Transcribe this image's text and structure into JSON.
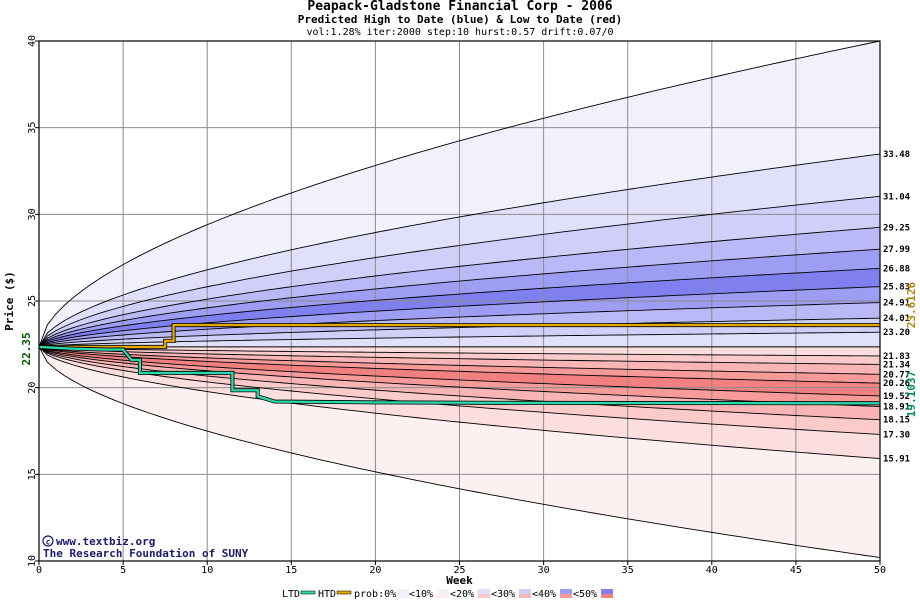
{
  "title": "Peapack-Gladstone Financial Corp - 2006",
  "subtitle": "Predicted High to Date (blue) &  Low to Date (red)",
  "params": "vol:1.28% iter:2000 step:10 hurst:0.57 drift:0.07/0",
  "watermark": {
    "line1": "www.textbiz.org",
    "line2": "The Research Foundation of SUNY"
  },
  "legend": {
    "ltd": "LTD",
    "htd": "HTD",
    "prob": "prob:0%",
    "items": [
      "<10%",
      "<20%",
      "<30%",
      "<40%",
      "<50%"
    ]
  },
  "colors": {
    "ltd": "#2bd6a8",
    "htd": "#e0a800",
    "blue_bands": [
      "#f1f1fd",
      "#e0e0fb",
      "#cfcff9",
      "#b9b9f7",
      "#9d9df4",
      "#7f7ff0"
    ],
    "red_bands": [
      "#fdf0f0",
      "#fcdede",
      "#fbcbcb",
      "#f9b5b5",
      "#f69a9a",
      "#f38080"
    ]
  },
  "chart_data": {
    "type": "area",
    "xlabel": "Week",
    "ylabel": "Price ($)",
    "xlim": [
      0,
      50
    ],
    "ylim": [
      10,
      40
    ],
    "xticks": [
      0,
      5,
      10,
      15,
      20,
      25,
      30,
      35,
      40,
      45,
      50
    ],
    "yticks": [
      10,
      15,
      20,
      25,
      30,
      35,
      40
    ],
    "start_price": 22.35,
    "start_label": "22.35",
    "htd_final_label": "23.6126",
    "ltd_final_label": "19.1037",
    "upper_bands": [
      {
        "label": "",
        "end": 40.0
      },
      {
        "label": "33.48",
        "end": 33.48
      },
      {
        "label": "31.04",
        "end": 31.04
      },
      {
        "label": "29.25",
        "end": 29.25
      },
      {
        "label": "27.99",
        "end": 27.99
      },
      {
        "label": "26.88",
        "end": 26.88
      },
      {
        "label": "25.83",
        "end": 25.83
      },
      {
        "label": "24.91",
        "end": 24.91
      },
      {
        "label": "24.01",
        "end": 24.01
      },
      {
        "label": "23.20",
        "end": 23.2
      }
    ],
    "lower_bands": [
      {
        "label": "21.83",
        "end": 21.83
      },
      {
        "label": "21.34",
        "end": 21.34
      },
      {
        "label": "20.77",
        "end": 20.77
      },
      {
        "label": "20.26",
        "end": 20.26
      },
      {
        "label": "19.52",
        "end": 19.52
      },
      {
        "label": "18.91",
        "end": 18.91
      },
      {
        "label": "18.15",
        "end": 18.15
      },
      {
        "label": "17.30",
        "end": 17.3
      },
      {
        "label": "15.91",
        "end": 15.91
      },
      {
        "label": "",
        "end": 10.2
      }
    ],
    "htd_line": [
      [
        0,
        22.35
      ],
      [
        7.5,
        22.35
      ],
      [
        7.5,
        22.7
      ],
      [
        8,
        22.7
      ],
      [
        8,
        23.61
      ],
      [
        50,
        23.61
      ]
    ],
    "ltd_line": [
      [
        0,
        22.35
      ],
      [
        1,
        22.3
      ],
      [
        2,
        22.25
      ],
      [
        4,
        22.2
      ],
      [
        5,
        22.2
      ],
      [
        5.5,
        21.6
      ],
      [
        6,
        21.6
      ],
      [
        6,
        20.85
      ],
      [
        11.5,
        20.85
      ],
      [
        11.5,
        19.85
      ],
      [
        13,
        19.85
      ],
      [
        13,
        19.5
      ],
      [
        14,
        19.2
      ],
      [
        20,
        19.15
      ],
      [
        30,
        19.12
      ],
      [
        50,
        19.1
      ]
    ]
  }
}
